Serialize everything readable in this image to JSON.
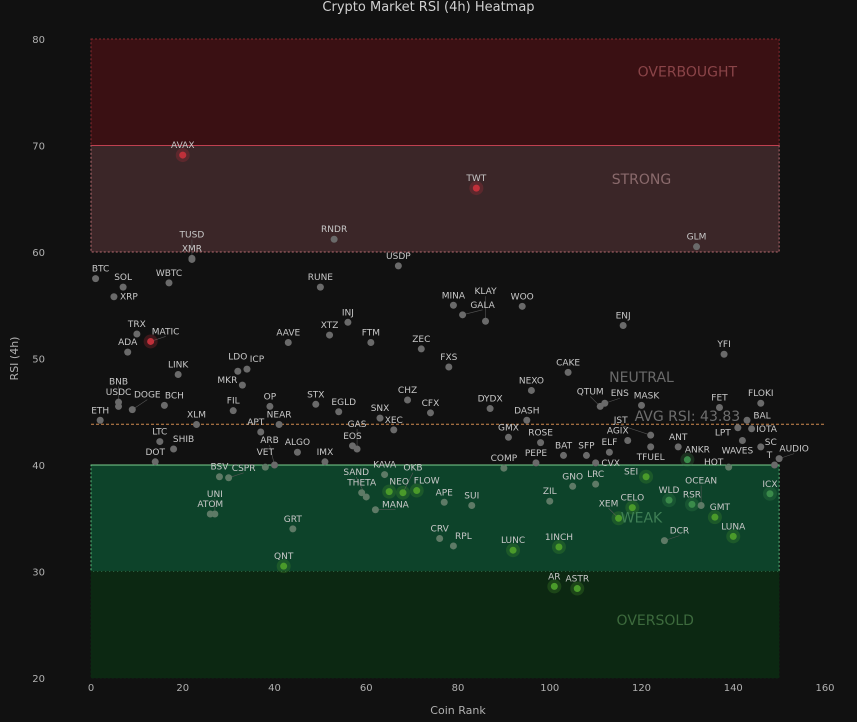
{
  "chart_data": {
    "type": "scatter",
    "title": "Crypto Market RSI (4h) Heatmap",
    "xlabel": "Coin Rank",
    "ylabel": "RSI (4h)",
    "xlim": [
      0,
      160
    ],
    "ylim": [
      20,
      80
    ],
    "xticks": [
      0,
      20,
      40,
      60,
      80,
      100,
      120,
      140,
      160
    ],
    "yticks": [
      20,
      30,
      40,
      50,
      60,
      70,
      80
    ],
    "zones": [
      {
        "name": "OVERBOUGHT",
        "from": 70,
        "to": 80,
        "color": "#3a1013",
        "border": "#8a2a30"
      },
      {
        "name": "STRONG",
        "from": 60,
        "to": 70,
        "color": "#3b2628",
        "border": "#b86a70"
      },
      {
        "name": "WEAK",
        "from": 30,
        "to": 40,
        "color": "#0d432a",
        "border": "#5cb87a"
      },
      {
        "name": "OVERSOLD",
        "from": 20,
        "to": 30,
        "color": "#0c2812",
        "border": "#0c2812"
      }
    ],
    "neutral_label": "NEUTRAL",
    "avg_rsi": 43.83,
    "avg_label": "AVG RSI: 43.83",
    "colors": {
      "hot": "#c0303a",
      "neutral": "#6a6a6a",
      "weak": "#3a8a4a",
      "oversold": "#4a9a2a",
      "avg_line": "#d08a50"
    },
    "points": [
      {
        "name": "AVAX",
        "x": 20,
        "y": 69.1,
        "c": "hot"
      },
      {
        "name": "TWT",
        "x": 84,
        "y": 66,
        "c": "hot"
      },
      {
        "name": "XMR",
        "x": 22,
        "y": 59.4
      },
      {
        "name": "TUSD",
        "x": 22,
        "y": 59.3
      },
      {
        "name": "RNDR",
        "x": 53,
        "y": 61.2
      },
      {
        "name": "GLM",
        "x": 132,
        "y": 60.5
      },
      {
        "name": "USDP",
        "x": 67,
        "y": 58.7
      },
      {
        "name": "BTC",
        "x": 1,
        "y": 57.5
      },
      {
        "name": "SOL",
        "x": 7,
        "y": 56.7
      },
      {
        "name": "XRP",
        "x": 5,
        "y": 55.8
      },
      {
        "name": "WBTC",
        "x": 17,
        "y": 57.1
      },
      {
        "name": "RUNE",
        "x": 50,
        "y": 56.7
      },
      {
        "name": "MINA",
        "x": 79,
        "y": 55
      },
      {
        "name": "GALA",
        "x": 81,
        "y": 54.1
      },
      {
        "name": "KLAY",
        "x": 86,
        "y": 53.5
      },
      {
        "name": "WOO",
        "x": 94,
        "y": 54.9
      },
      {
        "name": "ENJ",
        "x": 116,
        "y": 53.1
      },
      {
        "name": "INJ",
        "x": 56,
        "y": 53.4
      },
      {
        "name": "XTZ",
        "x": 52,
        "y": 52.2
      },
      {
        "name": "FTM",
        "x": 61,
        "y": 51.5
      },
      {
        "name": "ZEC",
        "x": 72,
        "y": 50.9
      },
      {
        "name": "FXS",
        "x": 78,
        "y": 49.2
      },
      {
        "name": "CAKE",
        "x": 104,
        "y": 48.7
      },
      {
        "name": "YFI",
        "x": 138,
        "y": 50.4
      },
      {
        "name": "TRX",
        "x": 10,
        "y": 52.3
      },
      {
        "name": "MATIC",
        "x": 13,
        "y": 51.6,
        "c": "hot"
      },
      {
        "name": "ADA",
        "x": 8,
        "y": 50.6
      },
      {
        "name": "AAVE",
        "x": 43,
        "y": 51.5
      },
      {
        "name": "LINK",
        "x": 19,
        "y": 48.5
      },
      {
        "name": "LDO",
        "x": 32,
        "y": 48.8
      },
      {
        "name": "ICP",
        "x": 34,
        "y": 49
      },
      {
        "name": "MKR",
        "x": 33,
        "y": 47.5
      },
      {
        "name": "USDC",
        "x": 6,
        "y": 45.9
      },
      {
        "name": "BNB",
        "x": 6,
        "y": 45.5
      },
      {
        "name": "DOGE",
        "x": 9,
        "y": 45.2
      },
      {
        "name": "ETH",
        "x": 2,
        "y": 44.2
      },
      {
        "name": "BCH",
        "x": 16,
        "y": 45.6
      },
      {
        "name": "XLM",
        "x": 23,
        "y": 43.8
      },
      {
        "name": "FIL",
        "x": 31,
        "y": 45.1
      },
      {
        "name": "OP",
        "x": 39,
        "y": 45.5
      },
      {
        "name": "NEAR",
        "x": 41,
        "y": 43.8
      },
      {
        "name": "APT",
        "x": 37,
        "y": 43.1
      },
      {
        "name": "STX",
        "x": 49,
        "y": 45.7
      },
      {
        "name": "EGLD",
        "x": 54,
        "y": 45
      },
      {
        "name": "SNX",
        "x": 63,
        "y": 44.4
      },
      {
        "name": "XEC",
        "x": 66,
        "y": 43.3
      },
      {
        "name": "CHZ",
        "x": 69,
        "y": 46.1
      },
      {
        "name": "CFX",
        "x": 74,
        "y": 44.9
      },
      {
        "name": "DYDX",
        "x": 87,
        "y": 45.3
      },
      {
        "name": "NEXO",
        "x": 96,
        "y": 47
      },
      {
        "name": "DASH",
        "x": 95,
        "y": 44.2
      },
      {
        "name": "QTUM",
        "x": 111,
        "y": 45.5
      },
      {
        "name": "ENS",
        "x": 112,
        "y": 45.8
      },
      {
        "name": "MASK",
        "x": 120,
        "y": 45.6
      },
      {
        "name": "FET",
        "x": 137,
        "y": 45.4
      },
      {
        "name": "FLOKI",
        "x": 146,
        "y": 45.8
      },
      {
        "name": "BAL",
        "x": 143,
        "y": 44.2
      },
      {
        "name": "LPT",
        "x": 141,
        "y": 43.5
      },
      {
        "name": "IOTA",
        "x": 144,
        "y": 43.4
      },
      {
        "name": "WAVES",
        "x": 142,
        "y": 42.3
      },
      {
        "name": "SC",
        "x": 146,
        "y": 41.7
      },
      {
        "name": "AUDIO",
        "x": 150,
        "y": 40.6
      },
      {
        "name": "T",
        "x": 149,
        "y": 40
      },
      {
        "name": "ICX",
        "x": 148,
        "y": 37.3,
        "c": "weak"
      },
      {
        "name": "HOT",
        "x": 139,
        "y": 39.8
      },
      {
        "name": "ANKR",
        "x": 130,
        "y": 40.5,
        "c": "weak"
      },
      {
        "name": "ANT",
        "x": 128,
        "y": 41.7
      },
      {
        "name": "AGIX",
        "x": 117,
        "y": 42.3
      },
      {
        "name": "JST",
        "x": 122,
        "y": 42.8
      },
      {
        "name": "TFUEL",
        "x": 122,
        "y": 41.7
      },
      {
        "name": "ELF",
        "x": 113,
        "y": 41.2
      },
      {
        "name": "GMX",
        "x": 91,
        "y": 42.6
      },
      {
        "name": "ROSE",
        "x": 98,
        "y": 42.1
      },
      {
        "name": "BAT",
        "x": 103,
        "y": 40.9
      },
      {
        "name": "PEPE",
        "x": 97,
        "y": 40.2
      },
      {
        "name": "SFP",
        "x": 108,
        "y": 40.9
      },
      {
        "name": "CVX",
        "x": 110,
        "y": 40.2
      },
      {
        "name": "COMP",
        "x": 90,
        "y": 39.7
      },
      {
        "name": "LTC",
        "x": 15,
        "y": 42.2
      },
      {
        "name": "SHIB",
        "x": 18,
        "y": 41.5
      },
      {
        "name": "DOT",
        "x": 14,
        "y": 40.3
      },
      {
        "name": "ALGO",
        "x": 45,
        "y": 41.2
      },
      {
        "name": "IMX",
        "x": 51,
        "y": 40.3
      },
      {
        "name": "EOS",
        "x": 57,
        "y": 41.8
      },
      {
        "name": "GAS",
        "x": 58,
        "y": 41.5
      },
      {
        "name": "VET",
        "x": 38,
        "y": 39.8
      },
      {
        "name": "ARB",
        "x": 40,
        "y": 40
      },
      {
        "name": "BSV",
        "x": 28,
        "y": 38.9
      },
      {
        "name": "CSPR",
        "x": 30,
        "y": 38.8
      },
      {
        "name": "KAVA",
        "x": 64,
        "y": 39.1
      },
      {
        "name": "THETA",
        "x": 59,
        "y": 37.4
      },
      {
        "name": "SAND",
        "x": 60,
        "y": 37
      },
      {
        "name": "MANA",
        "x": 62,
        "y": 35.8
      },
      {
        "name": "NEO",
        "x": 65,
        "y": 37.5,
        "c": "oversold"
      },
      {
        "name": "OKB",
        "x": 68,
        "y": 37.4,
        "c": "oversold"
      },
      {
        "name": "FLOW",
        "x": 71,
        "y": 37.6,
        "c": "oversold"
      },
      {
        "name": "APE",
        "x": 77,
        "y": 36.5
      },
      {
        "name": "SUI",
        "x": 83,
        "y": 36.2
      },
      {
        "name": "ZIL",
        "x": 100,
        "y": 36.6
      },
      {
        "name": "GNO",
        "x": 105,
        "y": 38
      },
      {
        "name": "LRC",
        "x": 110,
        "y": 38.2
      },
      {
        "name": "SEI",
        "x": 121,
        "y": 38.9,
        "c": "oversold"
      },
      {
        "name": "CELO",
        "x": 118,
        "y": 36,
        "c": "oversold"
      },
      {
        "name": "XEM",
        "x": 115,
        "y": 35,
        "c": "oversold"
      },
      {
        "name": "WLD",
        "x": 126,
        "y": 36.7,
        "c": "weak"
      },
      {
        "name": "RSR",
        "x": 131,
        "y": 36.3,
        "c": "weak"
      },
      {
        "name": "OCEAN",
        "x": 133,
        "y": 36.2
      },
      {
        "name": "GMT",
        "x": 136,
        "y": 35.1,
        "c": "oversold"
      },
      {
        "name": "LUNA",
        "x": 140,
        "y": 33.3,
        "c": "oversold"
      },
      {
        "name": "DCR",
        "x": 125,
        "y": 32.9
      },
      {
        "name": "GRT",
        "x": 44,
        "y": 34
      },
      {
        "name": "ATOM",
        "x": 26,
        "y": 35.4
      },
      {
        "name": "UNI",
        "x": 27,
        "y": 35.4
      },
      {
        "name": "CRV",
        "x": 76,
        "y": 33.1
      },
      {
        "name": "RPL",
        "x": 79,
        "y": 32.4
      },
      {
        "name": "LUNC",
        "x": 92,
        "y": 32,
        "c": "oversold"
      },
      {
        "name": "1INCH",
        "x": 102,
        "y": 32.3,
        "c": "oversold"
      },
      {
        "name": "QNT",
        "x": 42,
        "y": 30.5,
        "c": "oversold"
      },
      {
        "name": "AR",
        "x": 101,
        "y": 28.6,
        "c": "oversold"
      },
      {
        "name": "ASTR",
        "x": 106,
        "y": 28.4,
        "c": "oversold"
      }
    ]
  }
}
